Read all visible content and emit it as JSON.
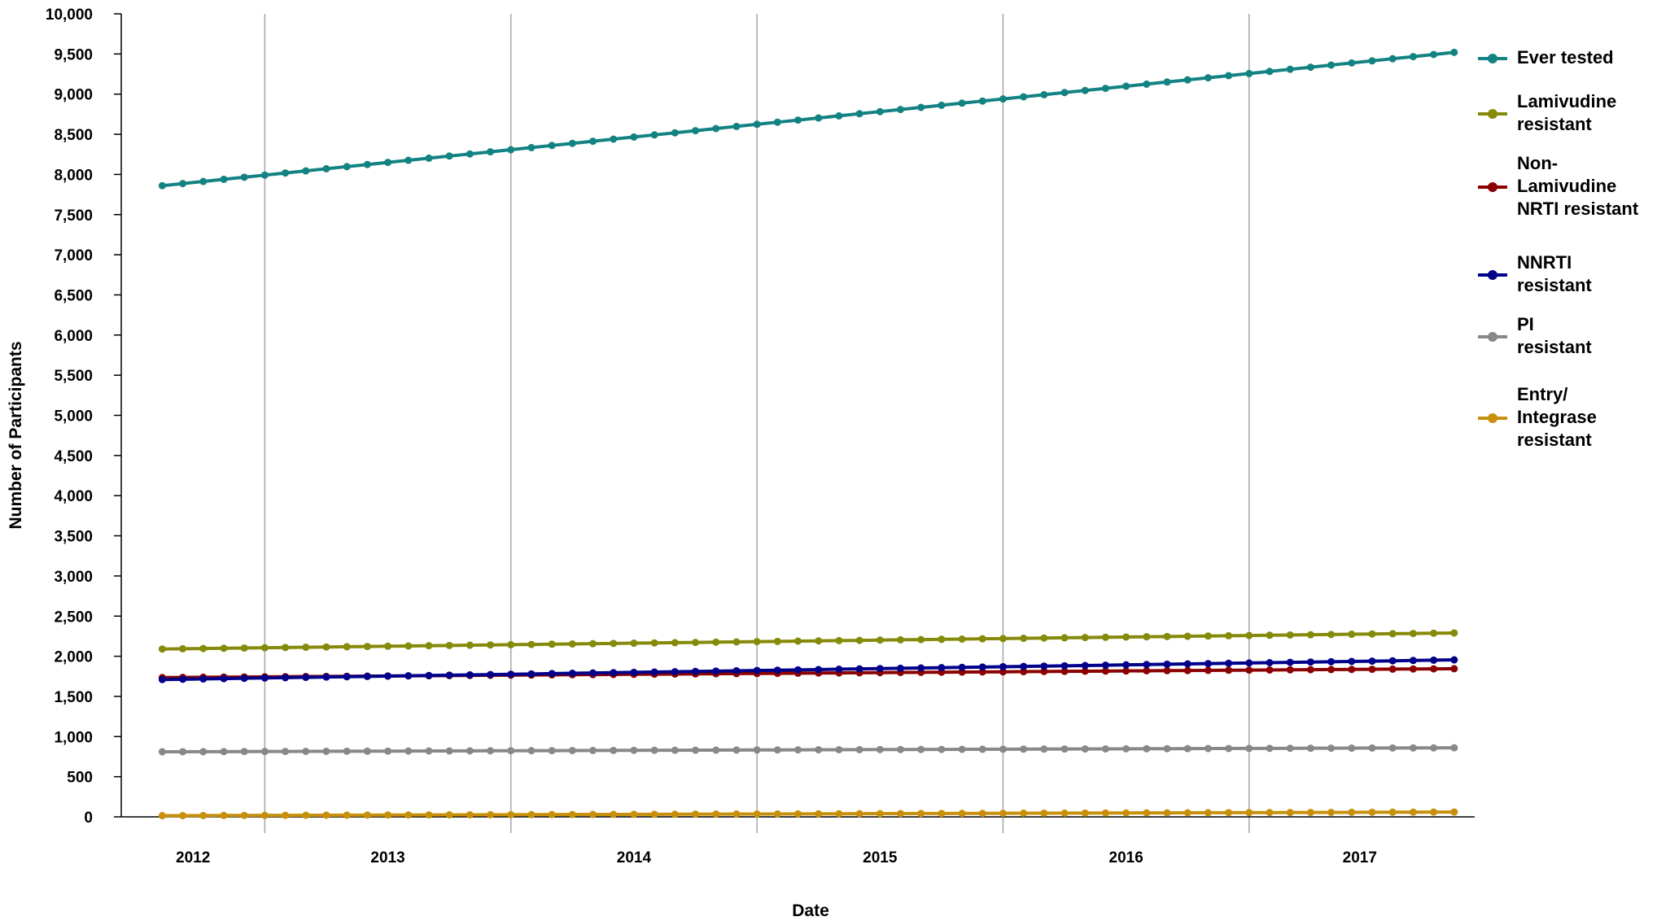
{
  "chart_data": {
    "type": "line",
    "title": "",
    "xlabel": "Date",
    "ylabel": "Number of Participants",
    "ylim": [
      0,
      10000
    ],
    "yticks": [
      0,
      500,
      1000,
      1500,
      2000,
      2500,
      3000,
      3500,
      4000,
      4500,
      5000,
      5500,
      6000,
      6500,
      7000,
      7500,
      8000,
      8500,
      9000,
      9500,
      10000
    ],
    "ytick_labels": [
      "0",
      "500",
      "1,000",
      "1,500",
      "2,000",
      "2,500",
      "3,000",
      "3,500",
      "4,000",
      "4,500",
      "5,000",
      "5,500",
      "6,000",
      "6,500",
      "7,000",
      "7,500",
      "8,000",
      "8,500",
      "9,000",
      "9,500",
      "10,000"
    ],
    "x_start": "2012-02",
    "x_end": "2017-05",
    "xlim": [
      "2011-12",
      "2017-06"
    ],
    "year_labels": [
      "2012",
      "2013",
      "2014",
      "2015",
      "2016",
      "2017"
    ],
    "year_separators": [
      "2012-07",
      "2013-07",
      "2014-07",
      "2015-07",
      "2016-07"
    ],
    "grid": "vertical lines between years",
    "legend_position": "right",
    "series": [
      {
        "name": "Ever tested",
        "color": "#138282",
        "start": 7860,
        "end": 9520
      },
      {
        "name": "Lamivudine resistant",
        "color": "#858A0A",
        "start": 2090,
        "end": 2290
      },
      {
        "name": "Non-Lamivudine NRTI resistant",
        "color": "#8B0000",
        "start": 1735,
        "end": 1845
      },
      {
        "name": "NNRTI resistant",
        "color": "#00008B",
        "start": 1710,
        "end": 1955
      },
      {
        "name": "PI resistant",
        "color": "#888888",
        "start": 810,
        "end": 860
      },
      {
        "name": "Entry/ Integrase resistant",
        "color": "#C8900A",
        "start": 15,
        "end": 60
      }
    ]
  },
  "legend": [
    {
      "lines": [
        "Ever tested"
      ]
    },
    {
      "lines": [
        "Lamivudine",
        "resistant"
      ]
    },
    {
      "lines": [
        "Non-",
        "Lamivudine",
        "NRTI resistant"
      ]
    },
    {
      "lines": [
        "NNRTI",
        "resistant"
      ]
    },
    {
      "lines": [
        "PI",
        "resistant"
      ]
    },
    {
      "lines": [
        "Entry/",
        "Integrase",
        "resistant"
      ]
    }
  ]
}
